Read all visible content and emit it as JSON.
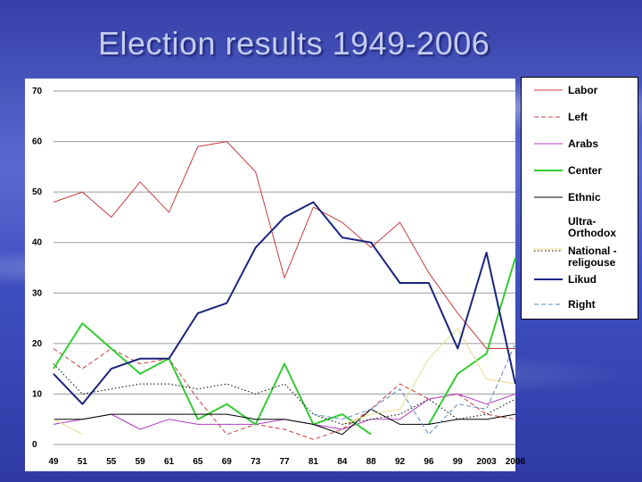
{
  "slide": {
    "title": "Election results 1949-2006"
  },
  "chart_data": {
    "type": "line",
    "title": "Election results 1949-2006",
    "xlabel": "",
    "ylabel": "",
    "categories": [
      "49",
      "51",
      "55",
      "59",
      "61",
      "65",
      "69",
      "73",
      "77",
      "81",
      "84",
      "88",
      "92",
      "96",
      "99",
      "2003",
      "2006"
    ],
    "ylim": [
      0,
      70
    ],
    "yticks": [
      0,
      10,
      20,
      30,
      40,
      50,
      60,
      70
    ],
    "grid": true,
    "legend_position": "right",
    "series": [
      {
        "name": "Labor",
        "color": "#c83c3c",
        "dash": "solid",
        "values": [
          48,
          50,
          45,
          52,
          46,
          59,
          60,
          54,
          33,
          47,
          44,
          39,
          44,
          34,
          26,
          19,
          19
        ]
      },
      {
        "name": "Left",
        "color": "#c83c3c",
        "dash": "dashed",
        "values": [
          19,
          15,
          19,
          16,
          17,
          9,
          2,
          4,
          3,
          1,
          3,
          7,
          12,
          9,
          10,
          6,
          5
        ]
      },
      {
        "name": "Arabs",
        "color": "#b03cc0",
        "dash": "solid",
        "values": [
          4,
          5,
          6,
          3,
          5,
          4,
          4,
          4,
          5,
          4,
          3,
          5,
          5,
          9,
          10,
          8,
          10
        ]
      },
      {
        "name": "Center",
        "color": "#33cc33",
        "dash": "solid",
        "width": 2,
        "values": [
          15,
          24,
          19,
          14,
          17,
          5,
          8,
          4,
          16,
          4,
          6,
          2,
          null,
          4,
          14,
          18,
          37
        ]
      },
      {
        "name": "Ethnic",
        "color": "#000000",
        "dash": "solid",
        "values": [
          5,
          5,
          6,
          6,
          6,
          6,
          6,
          5,
          5,
          4,
          2,
          7,
          4,
          4,
          5,
          5,
          6
        ]
      },
      {
        "name": "Ultra-Orthodox",
        "color": "#e8dc8a",
        "dash": "solid",
        "values": [
          5,
          2,
          null,
          null,
          null,
          null,
          null,
          null,
          null,
          null,
          4,
          6,
          7,
          17,
          23,
          13,
          12
        ]
      },
      {
        "name": "National - religouse",
        "color": "#000000",
        "dash": "dotted",
        "values": [
          16,
          10,
          11,
          12,
          12,
          11,
          12,
          10,
          12,
          6,
          4,
          5,
          6,
          9,
          5,
          6,
          9
        ]
      },
      {
        "name": "Likud",
        "color": "#1a237e",
        "dash": "solid",
        "width": 2,
        "values": [
          14,
          8,
          15,
          17,
          17,
          26,
          28,
          39,
          45,
          48,
          41,
          40,
          32,
          32,
          19,
          38,
          12
        ]
      },
      {
        "name": "Right",
        "color": "#5b88c0",
        "dash": "dashed",
        "values": [
          null,
          null,
          null,
          null,
          null,
          null,
          null,
          null,
          null,
          6,
          5,
          7,
          11,
          2,
          8,
          7,
          20
        ]
      }
    ]
  }
}
